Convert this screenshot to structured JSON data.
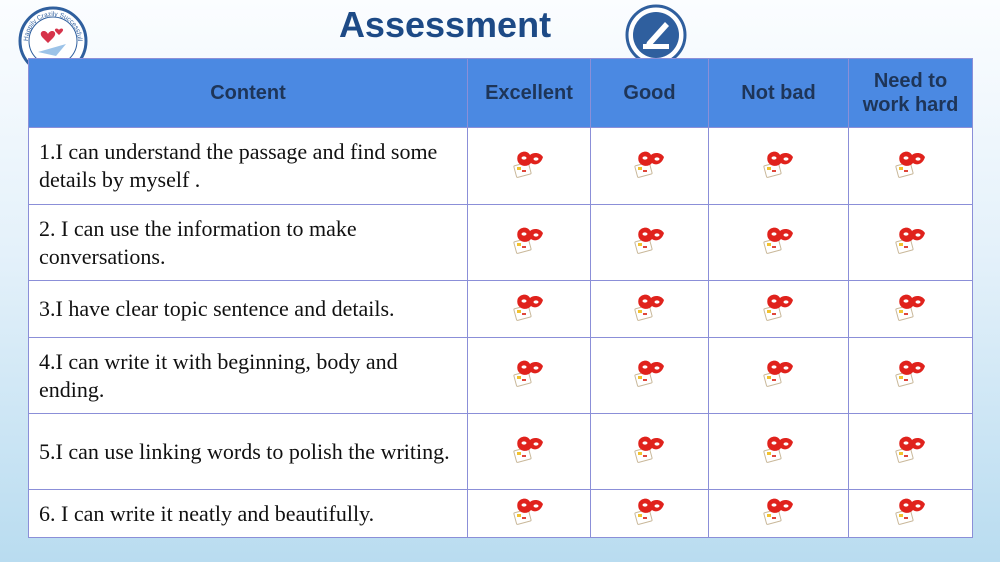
{
  "header": {
    "title": "Assessment",
    "logo_text": "Happily Crazily Successfully"
  },
  "table": {
    "columns": [
      "Content",
      "Excellent",
      "Good",
      "Not bad",
      "Need to work hard"
    ],
    "rows": [
      [
        "1.I can understand the passage and find some details by myself ."
      ],
      [
        "2. I can use the information to make conversations."
      ],
      [
        "3.I have clear topic sentence and details."
      ],
      [
        "4.I can write it with beginning, body and ending."
      ],
      [
        "5.I can use linking words to polish the writing."
      ],
      [
        "6. I can write it neatly and beautifully."
      ]
    ]
  }
}
